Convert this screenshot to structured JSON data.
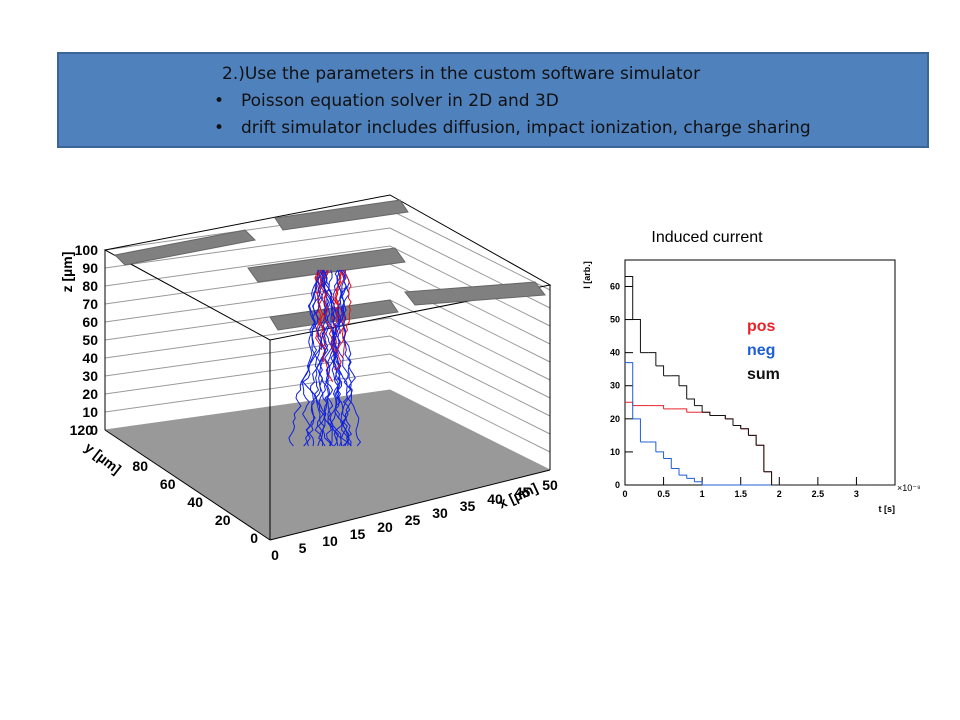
{
  "banner": {
    "heading": "2.)Use the parameters in the custom software simulator",
    "bullets": [
      "Poisson equation solver in 2D and 3D",
      "drift simulator includes diffusion, impact ionization, charge sharing"
    ]
  },
  "plot3d": {
    "z_label": "z [µm]",
    "y_label": "y [µm]",
    "x_label": "x [µm]",
    "z_ticks": [
      "0",
      "10",
      "20",
      "30",
      "40",
      "50",
      "60",
      "70",
      "80",
      "90",
      "100"
    ],
    "y_ticks": [
      "0",
      "20",
      "40",
      "60",
      "80",
      "120"
    ],
    "x_ticks": [
      "0",
      "5",
      "10",
      "15",
      "20",
      "25",
      "30",
      "35",
      "40",
      "45",
      "50"
    ]
  },
  "chart_data": {
    "type": "histogram",
    "title": "Induced current",
    "x_label": "t [s]",
    "x_exponent": "×10⁻⁹",
    "y_label": "I [arb.]",
    "bins": [
      0,
      0.1,
      0.2,
      0.3,
      0.4,
      0.5,
      0.6,
      0.7,
      0.8,
      0.9,
      1.0,
      1.1,
      1.2,
      1.3,
      1.4,
      1.5,
      1.6,
      1.7,
      1.8,
      1.9,
      2.0,
      2.1,
      2.2,
      2.3,
      2.4,
      2.5,
      2.6,
      2.7,
      2.8,
      2.9,
      3.0,
      3.1,
      3.2,
      3.3,
      3.4,
      3.5
    ],
    "series": [
      {
        "name": "pos",
        "color": "#e8232a",
        "values": [
          25,
          24,
          24,
          24,
          24,
          23,
          23,
          23,
          22,
          22,
          22,
          21,
          21,
          20,
          18,
          17,
          15,
          12,
          4,
          0,
          0,
          0,
          0,
          0,
          0,
          0,
          0,
          0,
          0,
          0,
          0,
          0,
          0,
          0,
          0
        ]
      },
      {
        "name": "neg",
        "color": "#1f5fd6",
        "values": [
          37,
          20,
          13,
          13,
          10,
          8,
          5,
          3,
          2,
          1,
          0,
          0,
          0,
          0,
          0,
          0,
          0,
          0,
          0,
          0,
          0,
          0,
          0,
          0,
          0,
          0,
          0,
          0,
          0,
          0,
          0,
          0,
          0,
          0,
          0
        ]
      },
      {
        "name": "sum",
        "color": "#111111",
        "values": [
          63,
          50,
          40,
          40,
          36,
          33,
          33,
          30,
          26,
          24,
          22,
          21,
          21,
          20,
          18,
          17,
          15,
          12,
          4,
          0,
          0,
          0,
          0,
          0,
          0,
          0,
          0,
          0,
          0,
          0,
          0,
          0,
          0,
          0,
          0
        ]
      }
    ],
    "xlim": [
      0,
      3.5
    ],
    "xticks": [
      0,
      0.5,
      1,
      1.5,
      2,
      2.5,
      3
    ],
    "ylim": [
      0,
      68
    ],
    "yticks": [
      0,
      10,
      20,
      30,
      40,
      50,
      60
    ]
  }
}
